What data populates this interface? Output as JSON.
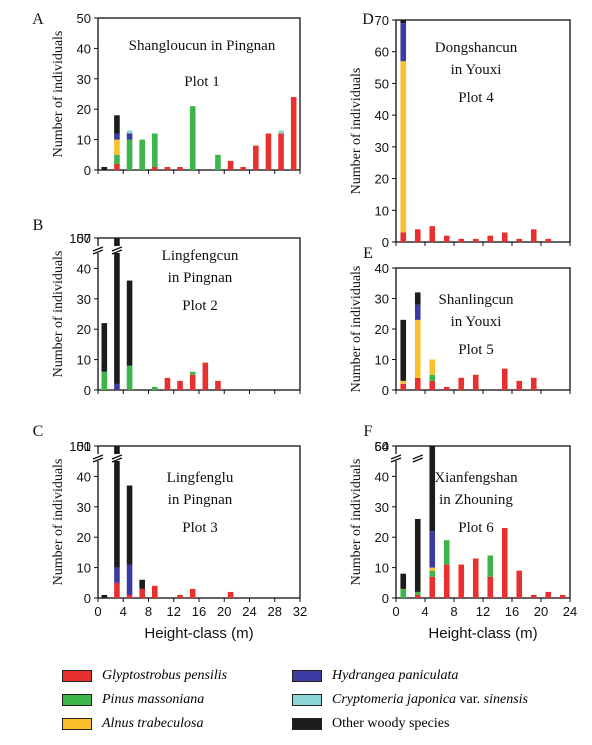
{
  "colors": {
    "Glyptostrobus pensilis": "#e8312e",
    "Pinus massoniana": "#3cb54a",
    "Alnus trabeculosa": "#fbc02d",
    "Hydrangea paniculata": "#3a3aa3",
    "Cryptomeria japonica var. sinensis": "#8fd6d6",
    "Other woody species": "#1c1c1c"
  },
  "shared": {
    "ylabel": "Number of individuals",
    "xlabel": "Height-class (m)"
  },
  "legend": [
    {
      "key": "Glyptostrobus pensilis",
      "italic": "Glyptostrobus pensilis",
      "plain": ""
    },
    {
      "key": "Hydrangea paniculata",
      "italic": "Hydrangea paniculata",
      "plain": ""
    },
    {
      "key": "Pinus massoniana",
      "italic": "Pinus massoniana",
      "plain": ""
    },
    {
      "key": "Cryptomeria japonica var. sinensis",
      "italic": "Cryptomeria japonica",
      "plain": " var. ",
      "italic2": "sinensis"
    },
    {
      "key": "Alnus trabeculosa",
      "italic": "Alnus trabeculosa",
      "plain": ""
    },
    {
      "key": "Other woody species",
      "italic": "",
      "plain": "Other woody species"
    }
  ],
  "chart_data": [
    {
      "panel": "A",
      "type": "bar",
      "stacked": true,
      "title_lines": [
        "Shangloucun in Pingnan",
        "Plot 1"
      ],
      "ylim": [
        0,
        50
      ],
      "yticks": [
        0,
        10,
        20,
        30,
        40,
        50
      ],
      "xlim": [
        0,
        32
      ],
      "xticks": [
        0,
        4,
        8,
        12,
        16,
        20,
        24,
        28,
        32
      ],
      "bars": [
        {
          "x": 1,
          "Other woody species": 1
        },
        {
          "x": 3,
          "Glyptostrobus pensilis": 2,
          "Pinus massoniana": 3,
          "Alnus trabeculosa": 5,
          "Hydrangea paniculata": 2,
          "Other woody species": 6
        },
        {
          "x": 5,
          "Pinus massoniana": 10,
          "Hydrangea paniculata": 2,
          "Cryptomeria japonica var. sinensis": 1
        },
        {
          "x": 7,
          "Pinus massoniana": 10
        },
        {
          "x": 9,
          "Glyptostrobus pensilis": 1,
          "Pinus massoniana": 11
        },
        {
          "x": 11,
          "Glyptostrobus pensilis": 1
        },
        {
          "x": 13,
          "Glyptostrobus pensilis": 1
        },
        {
          "x": 15,
          "Pinus massoniana": 21
        },
        {
          "x": 19,
          "Pinus massoniana": 5
        },
        {
          "x": 21,
          "Glyptostrobus pensilis": 3
        },
        {
          "x": 23,
          "Glyptostrobus pensilis": 1
        },
        {
          "x": 25,
          "Glyptostrobus pensilis": 8
        },
        {
          "x": 27,
          "Glyptostrobus pensilis": 12
        },
        {
          "x": 29,
          "Glyptostrobus pensilis": 12,
          "Cryptomeria japonica var. sinensis": 1
        },
        {
          "x": 31,
          "Glyptostrobus pensilis": 24
        }
      ]
    },
    {
      "panel": "B",
      "type": "bar",
      "stacked": true,
      "title_lines": [
        "Lingfengcun",
        "in Pingnan",
        "Plot 2"
      ],
      "ylim": [
        0,
        50
      ],
      "yticks": [
        0,
        10,
        20,
        30,
        40,
        50
      ],
      "ybreak_label": "107",
      "xlim": [
        0,
        32
      ],
      "xticks": [
        0,
        4,
        8,
        12,
        16,
        20,
        24,
        28,
        32
      ],
      "bars": [
        {
          "x": 1,
          "Pinus massoniana": 6,
          "Other woody species": 16
        },
        {
          "x": 3,
          "Hydrangea paniculata": 2,
          "Other woody species": 105
        },
        {
          "x": 5,
          "Pinus massoniana": 8,
          "Other woody species": 28
        },
        {
          "x": 9,
          "Pinus massoniana": 1
        },
        {
          "x": 11,
          "Glyptostrobus pensilis": 4
        },
        {
          "x": 13,
          "Glyptostrobus pensilis": 3
        },
        {
          "x": 15,
          "Glyptostrobus pensilis": 5,
          "Pinus massoniana": 1
        },
        {
          "x": 17,
          "Glyptostrobus pensilis": 9
        },
        {
          "x": 19,
          "Glyptostrobus pensilis": 3
        }
      ]
    },
    {
      "panel": "C",
      "type": "bar",
      "stacked": true,
      "title_lines": [
        "Lingfenglu",
        "in Pingnan",
        "Plot 3"
      ],
      "ylim": [
        0,
        50
      ],
      "yticks": [
        0,
        10,
        20,
        30,
        40,
        50
      ],
      "ybreak_label": "101",
      "xlim": [
        0,
        32
      ],
      "xticks": [
        0,
        4,
        8,
        12,
        16,
        20,
        24,
        28,
        32
      ],
      "bars": [
        {
          "x": 1,
          "Other woody species": 1
        },
        {
          "x": 3,
          "Glyptostrobus pensilis": 5,
          "Hydrangea paniculata": 5,
          "Other woody species": 91
        },
        {
          "x": 5,
          "Glyptostrobus pensilis": 1,
          "Hydrangea paniculata": 10,
          "Other woody species": 26
        },
        {
          "x": 7,
          "Glyptostrobus pensilis": 3,
          "Other woody species": 3
        },
        {
          "x": 9,
          "Glyptostrobus pensilis": 4
        },
        {
          "x": 13,
          "Glyptostrobus pensilis": 1
        },
        {
          "x": 15,
          "Glyptostrobus pensilis": 3
        },
        {
          "x": 21,
          "Glyptostrobus pensilis": 2
        }
      ]
    },
    {
      "panel": "D",
      "type": "bar",
      "stacked": true,
      "title_lines": [
        "Dongshancun",
        "in Youxi",
        "Plot 4"
      ],
      "ylim": [
        0,
        70
      ],
      "yticks": [
        0,
        10,
        20,
        30,
        40,
        50,
        60,
        70
      ],
      "xlim": [
        0,
        24
      ],
      "xticks": [
        0,
        4,
        8,
        12,
        16,
        20,
        24
      ],
      "bars": [
        {
          "x": 1,
          "Glyptostrobus pensilis": 3,
          "Alnus trabeculosa": 54,
          "Hydrangea paniculata": 12,
          "Other woody species": 1
        },
        {
          "x": 3,
          "Glyptostrobus pensilis": 4
        },
        {
          "x": 5,
          "Glyptostrobus pensilis": 5
        },
        {
          "x": 7,
          "Glyptostrobus pensilis": 2
        },
        {
          "x": 9,
          "Glyptostrobus pensilis": 1
        },
        {
          "x": 11,
          "Glyptostrobus pensilis": 1
        },
        {
          "x": 13,
          "Glyptostrobus pensilis": 2
        },
        {
          "x": 15,
          "Glyptostrobus pensilis": 3
        },
        {
          "x": 17,
          "Glyptostrobus pensilis": 1
        },
        {
          "x": 19,
          "Glyptostrobus pensilis": 4
        },
        {
          "x": 21,
          "Glyptostrobus pensilis": 1
        }
      ]
    },
    {
      "panel": "E",
      "type": "bar",
      "stacked": true,
      "title_lines": [
        "Shanlingcun",
        "in Youxi",
        "Plot 5"
      ],
      "ylim": [
        0,
        40
      ],
      "yticks": [
        0,
        10,
        20,
        30,
        40
      ],
      "xlim": [
        0,
        24
      ],
      "xticks": [
        0,
        4,
        8,
        12,
        16,
        20,
        24
      ],
      "bars": [
        {
          "x": 1,
          "Glyptostrobus pensilis": 2,
          "Alnus trabeculosa": 1,
          "Other woody species": 20
        },
        {
          "x": 3,
          "Glyptostrobus pensilis": 4,
          "Alnus trabeculosa": 19,
          "Hydrangea paniculata": 5,
          "Other woody species": 4
        },
        {
          "x": 5,
          "Glyptostrobus pensilis": 3,
          "Pinus massoniana": 2,
          "Alnus trabeculosa": 5
        },
        {
          "x": 7,
          "Glyptostrobus pensilis": 1
        },
        {
          "x": 9,
          "Glyptostrobus pensilis": 4
        },
        {
          "x": 11,
          "Glyptostrobus pensilis": 5
        },
        {
          "x": 15,
          "Glyptostrobus pensilis": 7
        },
        {
          "x": 17,
          "Glyptostrobus pensilis": 3
        },
        {
          "x": 19,
          "Glyptostrobus pensilis": 4
        }
      ]
    },
    {
      "panel": "F",
      "type": "bar",
      "stacked": true,
      "title_lines": [
        "Xianfengshan",
        "in Zhouning",
        "Plot 6"
      ],
      "ylim": [
        0,
        50
      ],
      "yticks": [
        0,
        10,
        20,
        30,
        40,
        50
      ],
      "ybreak_label": "64",
      "xlim": [
        0,
        24
      ],
      "xticks": [
        0,
        4,
        8,
        12,
        16,
        20,
        24
      ],
      "bars": [
        {
          "x": 1,
          "Pinus massoniana": 3,
          "Other woody species": 5
        },
        {
          "x": 3,
          "Glyptostrobus pensilis": 1,
          "Pinus massoniana": 1,
          "Other woody species": 24
        },
        {
          "x": 5,
          "Glyptostrobus pensilis": 7,
          "Pinus massoniana": 2,
          "Alnus trabeculosa": 1,
          "Hydrangea paniculata": 12,
          "Other woody species": 42
        },
        {
          "x": 7,
          "Glyptostrobus pensilis": 11,
          "Pinus massoniana": 8
        },
        {
          "x": 9,
          "Glyptostrobus pensilis": 11
        },
        {
          "x": 11,
          "Glyptostrobus pensilis": 13
        },
        {
          "x": 13,
          "Glyptostrobus pensilis": 7,
          "Pinus massoniana": 7
        },
        {
          "x": 15,
          "Glyptostrobus pensilis": 23
        },
        {
          "x": 17,
          "Glyptostrobus pensilis": 9
        },
        {
          "x": 19,
          "Glyptostrobus pensilis": 1
        },
        {
          "x": 21,
          "Glyptostrobus pensilis": 2
        },
        {
          "x": 23,
          "Glyptostrobus pensilis": 1
        }
      ]
    }
  ]
}
